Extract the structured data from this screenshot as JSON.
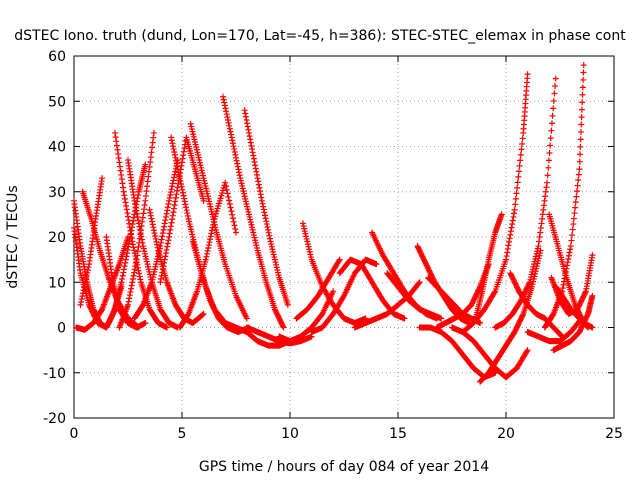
{
  "chart_data": {
    "type": "scatter",
    "title": "dSTEC Iono. truth (dund, Lon=170, Lat=-45, h=386): STEC-STEC_elemax in phase cont",
    "xlabel": "GPS time / hours of day 084 of year 2014",
    "ylabel": "dSTEC  / TECUs",
    "xlim": [
      0,
      25
    ],
    "ylim": [
      -20,
      60
    ],
    "xticks": [
      "0",
      "5",
      "10",
      "15",
      "20",
      "25"
    ],
    "yticks": [
      "-20",
      "-10",
      "0",
      "10",
      "20",
      "30",
      "40",
      "50",
      "60"
    ],
    "grid": true,
    "marker": "+",
    "color": "#ff0000",
    "series": [
      {
        "x": [
          0.0,
          0.3,
          0.6,
          0.9,
          1.2,
          1.5
        ],
        "y": [
          28,
          18,
          10,
          4,
          1,
          0
        ]
      },
      {
        "x": [
          0.0,
          0.3,
          0.7,
          1.1,
          1.5,
          1.8,
          2.2
        ],
        "y": [
          22,
          12,
          5,
          1,
          0,
          3,
          9
        ]
      },
      {
        "x": [
          0.1,
          0.5,
          0.9,
          1.3,
          1.7,
          2.1,
          2.5
        ],
        "y": [
          0,
          -0.5,
          1,
          4,
          9,
          14,
          20
        ]
      },
      {
        "x": [
          0.4,
          0.8,
          1.2,
          1.6,
          2.0,
          2.5,
          3.0
        ],
        "y": [
          30,
          24,
          17,
          11,
          6,
          2,
          0
        ]
      },
      {
        "x": [
          0.3,
          0.7,
          1.0,
          1.3
        ],
        "y": [
          5,
          14,
          24,
          33
        ]
      },
      {
        "x": [
          1.5,
          1.8,
          2.1,
          2.5,
          2.9,
          3.3
        ],
        "y": [
          20,
          10,
          4,
          1,
          0,
          1
        ]
      },
      {
        "x": [
          1.6,
          1.9,
          2.2,
          2.6,
          3.0,
          3.3
        ],
        "y": [
          1,
          4,
          10,
          20,
          30,
          36
        ]
      },
      {
        "x": [
          1.9,
          2.3,
          2.7,
          3.1,
          3.5,
          3.9,
          4.3
        ],
        "y": [
          43,
          30,
          19,
          10,
          4,
          1,
          0
        ]
      },
      {
        "x": [
          2.5,
          2.8,
          3.2,
          3.6,
          4.0,
          4.4,
          4.8
        ],
        "y": [
          37,
          28,
          18,
          10,
          4,
          1,
          0
        ]
      },
      {
        "x": [
          2.1,
          2.5,
          2.9,
          3.3,
          3.7
        ],
        "y": [
          0,
          5,
          15,
          28,
          43
        ]
      },
      {
        "x": [
          2.8,
          3.2,
          3.6,
          4.0,
          4.4,
          4.8
        ],
        "y": [
          2,
          5,
          10,
          18,
          28,
          37
        ]
      },
      {
        "x": [
          3.5,
          3.9,
          4.3,
          4.7,
          5.1,
          5.5,
          6.0
        ],
        "y": [
          26,
          17,
          10,
          5,
          2,
          1,
          3
        ]
      },
      {
        "x": [
          4.0,
          4.4,
          4.8,
          5.2,
          5.6,
          6.0
        ],
        "y": [
          10,
          20,
          31,
          42,
          35,
          28
        ]
      },
      {
        "x": [
          4.5,
          4.9,
          5.3,
          5.7,
          6.1,
          6.5,
          7.0
        ],
        "y": [
          42,
          33,
          24,
          16,
          9,
          4,
          1
        ]
      },
      {
        "x": [
          4.9,
          5.3,
          5.7,
          6.1,
          6.5,
          7.0,
          7.5
        ],
        "y": [
          0,
          3,
          8,
          15,
          24,
          32,
          21
        ]
      },
      {
        "x": [
          5.4,
          5.8,
          6.2,
          6.6,
          7.0,
          7.5,
          8.0
        ],
        "y": [
          45,
          37,
          29,
          21,
          14,
          7,
          2
        ]
      },
      {
        "x": [
          5.5,
          5.9,
          6.3,
          6.7,
          7.1,
          7.6,
          8.1
        ],
        "y": [
          19,
          12,
          6,
          2,
          0,
          -1,
          0
        ]
      },
      {
        "x": [
          6.9,
          7.3,
          7.7,
          8.1,
          8.5,
          8.9,
          9.3,
          9.7
        ],
        "y": [
          51,
          42,
          33,
          25,
          17,
          10,
          4,
          0
        ]
      },
      {
        "x": [
          7.9,
          8.3,
          8.7,
          9.1,
          9.5,
          9.9
        ],
        "y": [
          48,
          38,
          28,
          19,
          11,
          5
        ]
      },
      {
        "x": [
          7.0,
          7.5,
          8.0,
          8.5,
          9.0,
          9.5,
          10.0
        ],
        "y": [
          1,
          0,
          -1,
          -3,
          -4,
          -4,
          -3
        ]
      },
      {
        "x": [
          8.0,
          8.5,
          9.0,
          9.5,
          10.0,
          10.5,
          11.0
        ],
        "y": [
          0,
          -1,
          -2,
          -3,
          -3.5,
          -3,
          -2
        ]
      },
      {
        "x": [
          9.5,
          10.0,
          10.5,
          11.0,
          11.5,
          12.0
        ],
        "y": [
          -2,
          -3,
          -2,
          0,
          3,
          8
        ]
      },
      {
        "x": [
          10.6,
          11.0,
          11.5,
          12.0,
          12.5,
          13.0,
          13.5
        ],
        "y": [
          23,
          15,
          9,
          5,
          2,
          1,
          2
        ]
      },
      {
        "x": [
          10.3,
          10.8,
          11.3,
          11.8,
          12.3
        ],
        "y": [
          2,
          4,
          7,
          11,
          15
        ]
      },
      {
        "x": [
          11.0,
          11.5,
          12.0,
          12.5,
          13.0,
          13.5,
          14.0
        ],
        "y": [
          -1,
          0,
          3,
          7,
          12,
          15,
          14
        ]
      },
      {
        "x": [
          12.3,
          12.8,
          13.3,
          13.8,
          14.3,
          14.8,
          15.3
        ],
        "y": [
          12,
          15,
          14,
          10,
          6,
          3,
          2
        ]
      },
      {
        "x": [
          13.8,
          14.3,
          14.8,
          15.3,
          15.8,
          16.3,
          16.8
        ],
        "y": [
          21,
          16,
          12,
          8,
          5,
          3,
          2
        ]
      },
      {
        "x": [
          14.5,
          15.0,
          15.5,
          16.0,
          16.5,
          17.0
        ],
        "y": [
          12,
          9,
          6,
          4,
          3,
          2
        ]
      },
      {
        "x": [
          13.0,
          13.5,
          14.0,
          14.5,
          15.0,
          15.5,
          16.0
        ],
        "y": [
          0,
          1,
          2,
          3,
          5,
          7,
          10
        ]
      },
      {
        "x": [
          15.9,
          16.3,
          16.7,
          17.1,
          17.5,
          17.9,
          18.3
        ],
        "y": [
          18,
          14,
          10,
          7,
          4,
          2,
          1
        ]
      },
      {
        "x": [
          16.4,
          16.8,
          17.2,
          17.6,
          18.0,
          18.4,
          18.8
        ],
        "y": [
          11,
          9,
          7,
          5,
          3,
          2,
          1
        ]
      },
      {
        "x": [
          16.0,
          16.5,
          17.0,
          17.5,
          18.0,
          18.5,
          19.0,
          19.5
        ],
        "y": [
          0,
          0,
          -1,
          -3,
          -6,
          -9,
          -11,
          -10
        ]
      },
      {
        "x": [
          16.8,
          17.2,
          17.6,
          18.0,
          18.4,
          18.8,
          19.2
        ],
        "y": [
          0,
          1,
          2,
          3,
          5,
          9,
          14
        ]
      },
      {
        "x": [
          17.5,
          18.0,
          18.5,
          19.0,
          19.5,
          20.0,
          20.5,
          21.0
        ],
        "y": [
          0,
          -1,
          -3,
          -6,
          -9,
          -11,
          -9,
          -5
        ]
      },
      {
        "x": [
          18.8,
          19.2,
          19.6,
          20.0,
          20.4,
          20.8,
          21.2,
          21.6
        ],
        "y": [
          -12,
          -10,
          -7,
          -4,
          -1,
          3,
          9,
          17
        ]
      },
      {
        "x": [
          18.0,
          18.5,
          19.0,
          19.5,
          20.0,
          20.4,
          20.8,
          21.0
        ],
        "y": [
          -1,
          1,
          4,
          8,
          15,
          26,
          43,
          56
        ]
      },
      {
        "x": [
          18.6,
          18.9,
          19.2,
          19.5,
          19.8
        ],
        "y": [
          2,
          8,
          15,
          21,
          25
        ]
      },
      {
        "x": [
          19.5,
          19.9,
          20.3,
          20.7,
          21.1,
          21.5,
          21.9,
          22.3
        ],
        "y": [
          0,
          1,
          3,
          6,
          10,
          18,
          32,
          55
        ]
      },
      {
        "x": [
          20.2,
          20.6,
          21.0,
          21.4,
          21.8,
          22.2,
          22.6
        ],
        "y": [
          12,
          8,
          5,
          3,
          2,
          0,
          -2
        ]
      },
      {
        "x": [
          21.0,
          21.5,
          22.0,
          22.5,
          23.0,
          23.5
        ],
        "y": [
          -1,
          -2,
          -3,
          -3,
          -1,
          2
        ]
      },
      {
        "x": [
          22.0,
          22.4,
          22.8,
          23.2,
          23.6,
          24.0
        ],
        "y": [
          25,
          18,
          11,
          5,
          1,
          0
        ]
      },
      {
        "x": [
          22.1,
          22.5,
          22.9,
          23.3,
          23.7,
          24.0
        ],
        "y": [
          11,
          6,
          3,
          4,
          8,
          16
        ]
      },
      {
        "x": [
          22.2,
          22.6,
          23.0,
          23.4,
          23.8,
          24.0
        ],
        "y": [
          -5,
          -4,
          -3,
          -1,
          3,
          7
        ]
      },
      {
        "x": [
          21.8,
          22.2,
          22.6,
          23.0,
          23.4,
          23.6
        ],
        "y": [
          0,
          3,
          8,
          18,
          35,
          58
        ]
      },
      {
        "x": [
          22.3,
          22.6,
          23.0,
          23.4,
          23.8
        ],
        "y": [
          9,
          7,
          4,
          2,
          0
        ]
      }
    ]
  }
}
